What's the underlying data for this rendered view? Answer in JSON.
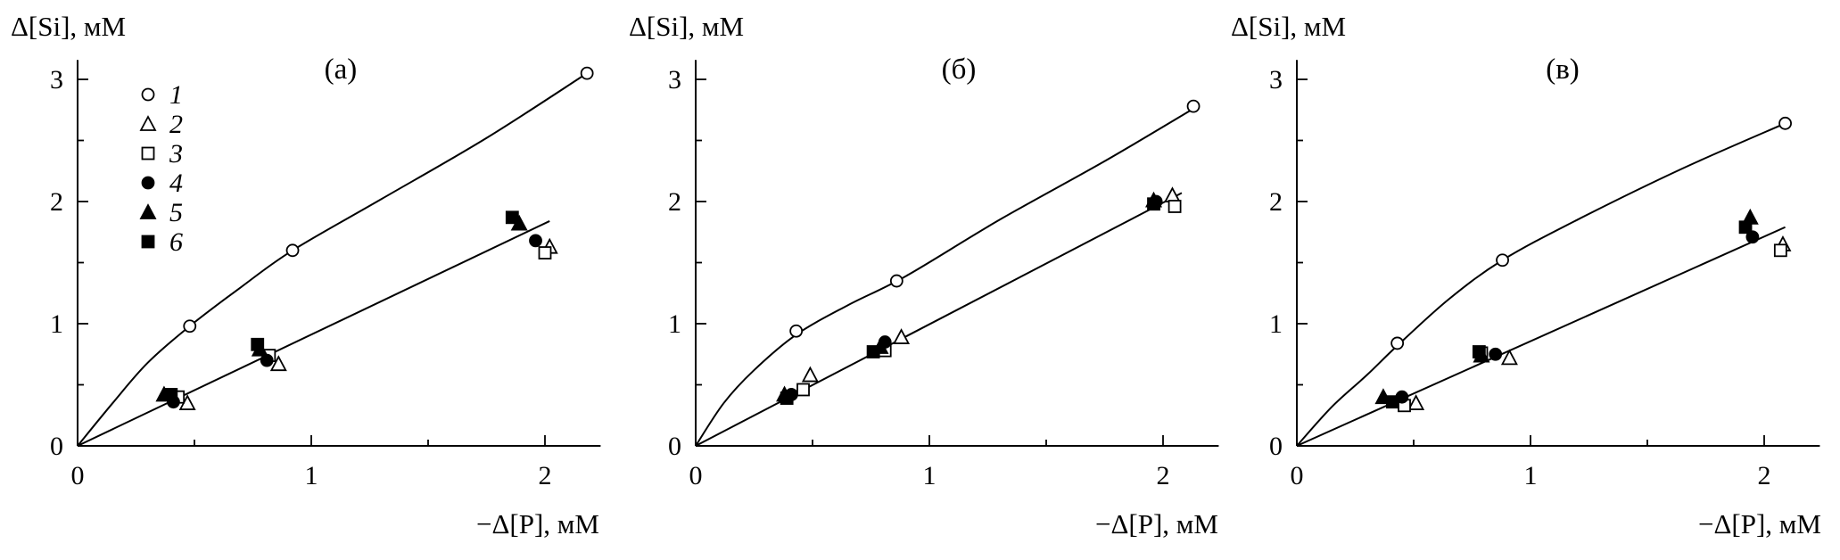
{
  "chart_data": [
    {
      "panel": "(а)",
      "type": "scatter",
      "title": "(а)",
      "xlabel": "−Δ[P], мМ",
      "ylabel": "Δ[Si], мМ",
      "xlim": [
        0,
        2.2
      ],
      "ylim": [
        0,
        3.1
      ],
      "xticks": [
        0,
        1,
        2
      ],
      "yticks": [
        0,
        1,
        2,
        3
      ],
      "legend": {
        "placement": "top-left",
        "entries": [
          "1",
          "2",
          "3",
          "4",
          "5",
          "6"
        ]
      },
      "series": [
        {
          "name": "1",
          "marker": "open-circle",
          "points": [
            [
              0.48,
              0.98
            ],
            [
              0.92,
              1.6
            ],
            [
              2.18,
              3.05
            ]
          ]
        },
        {
          "name": "2",
          "marker": "open-triangle",
          "points": [
            [
              0.47,
              0.35
            ],
            [
              0.86,
              0.67
            ],
            [
              2.02,
              1.63
            ]
          ]
        },
        {
          "name": "3",
          "marker": "open-square",
          "points": [
            [
              0.43,
              0.4
            ],
            [
              0.82,
              0.74
            ],
            [
              2.0,
              1.58
            ]
          ]
        },
        {
          "name": "4",
          "marker": "filled-circle",
          "points": [
            [
              0.41,
              0.36
            ],
            [
              0.81,
              0.7
            ],
            [
              1.96,
              1.68
            ]
          ]
        },
        {
          "name": "5",
          "marker": "filled-triangle",
          "points": [
            [
              0.37,
              0.42
            ],
            [
              0.78,
              0.79
            ],
            [
              1.89,
              1.82
            ]
          ]
        },
        {
          "name": "6",
          "marker": "filled-square",
          "points": [
            [
              0.4,
              0.42
            ],
            [
              0.77,
              0.83
            ],
            [
              1.86,
              1.87
            ]
          ]
        }
      ],
      "fit_lines": [
        {
          "style": "curve",
          "points": [
            [
              0,
              0
            ],
            [
              0.15,
              0.35
            ],
            [
              0.3,
              0.68
            ],
            [
              0.48,
              0.98
            ],
            [
              0.7,
              1.3
            ],
            [
              0.92,
              1.6
            ],
            [
              1.3,
              2.02
            ],
            [
              1.75,
              2.52
            ],
            [
              2.18,
              3.05
            ]
          ]
        },
        {
          "style": "line",
          "points": [
            [
              0,
              0
            ],
            [
              2.02,
              1.84
            ]
          ]
        }
      ]
    },
    {
      "panel": "(б)",
      "type": "scatter",
      "title": "(б)",
      "xlabel": "−Δ[P], мМ",
      "ylabel": "Δ[Si], мМ",
      "xlim": [
        0,
        2.2
      ],
      "ylim": [
        0,
        3.1
      ],
      "xticks": [
        0,
        1,
        2
      ],
      "yticks": [
        0,
        1,
        2,
        3
      ],
      "series": [
        {
          "name": "1",
          "marker": "open-circle",
          "points": [
            [
              0.43,
              0.94
            ],
            [
              0.86,
              1.35
            ],
            [
              2.13,
              2.78
            ]
          ]
        },
        {
          "name": "2",
          "marker": "open-triangle",
          "points": [
            [
              0.49,
              0.58
            ],
            [
              0.88,
              0.89
            ],
            [
              2.04,
              2.05
            ]
          ]
        },
        {
          "name": "3",
          "marker": "open-square",
          "points": [
            [
              0.46,
              0.46
            ],
            [
              0.81,
              0.78
            ],
            [
              2.05,
              1.96
            ]
          ]
        },
        {
          "name": "4",
          "marker": "filled-circle",
          "points": [
            [
              0.41,
              0.42
            ],
            [
              0.81,
              0.85
            ],
            [
              1.97,
              2.0
            ]
          ]
        },
        {
          "name": "5",
          "marker": "filled-triangle",
          "points": [
            [
              0.38,
              0.42
            ],
            [
              0.79,
              0.81
            ],
            [
              1.96,
              2.01
            ]
          ]
        },
        {
          "name": "6",
          "marker": "filled-square",
          "points": [
            [
              0.39,
              0.39
            ],
            [
              0.76,
              0.77
            ],
            [
              1.96,
              1.98
            ]
          ]
        }
      ],
      "fit_lines": [
        {
          "style": "curve",
          "points": [
            [
              0,
              0
            ],
            [
              0.12,
              0.35
            ],
            [
              0.25,
              0.62
            ],
            [
              0.43,
              0.91
            ],
            [
              0.65,
              1.15
            ],
            [
              0.9,
              1.39
            ],
            [
              1.3,
              1.85
            ],
            [
              1.75,
              2.33
            ],
            [
              2.13,
              2.76
            ]
          ]
        },
        {
          "style": "line",
          "points": [
            [
              0,
              0
            ],
            [
              2.08,
              2.07
            ]
          ]
        }
      ]
    },
    {
      "panel": "(в)",
      "type": "scatter",
      "title": "(в)",
      "xlabel": "−Δ[P], мМ",
      "ylabel": "Δ[Si], мМ",
      "xlim": [
        0,
        2.2
      ],
      "ylim": [
        0,
        3.1
      ],
      "xticks": [
        0,
        1,
        2
      ],
      "yticks": [
        0,
        1,
        2,
        3
      ],
      "series": [
        {
          "name": "1",
          "marker": "open-circle",
          "points": [
            [
              0.43,
              0.84
            ],
            [
              0.88,
              1.52
            ],
            [
              2.09,
              2.64
            ]
          ]
        },
        {
          "name": "2",
          "marker": "open-triangle",
          "points": [
            [
              0.51,
              0.35
            ],
            [
              0.91,
              0.72
            ],
            [
              2.08,
              1.65
            ]
          ]
        },
        {
          "name": "3",
          "marker": "open-square",
          "points": [
            [
              0.46,
              0.33
            ],
            [
              0.79,
              0.76
            ],
            [
              2.07,
              1.6
            ]
          ]
        },
        {
          "name": "4",
          "marker": "filled-circle",
          "points": [
            [
              0.45,
              0.4
            ],
            [
              0.85,
              0.75
            ],
            [
              1.95,
              1.71
            ]
          ]
        },
        {
          "name": "5",
          "marker": "filled-triangle",
          "points": [
            [
              0.37,
              0.4
            ],
            [
              0.79,
              0.74
            ],
            [
              1.94,
              1.87
            ]
          ]
        },
        {
          "name": "6",
          "marker": "filled-square",
          "points": [
            [
              0.41,
              0.36
            ],
            [
              0.78,
              0.77
            ],
            [
              1.92,
              1.79
            ]
          ]
        }
      ],
      "fit_lines": [
        {
          "style": "curve",
          "points": [
            [
              0,
              0
            ],
            [
              0.15,
              0.32
            ],
            [
              0.3,
              0.58
            ],
            [
              0.43,
              0.82
            ],
            [
              0.65,
              1.2
            ],
            [
              0.88,
              1.52
            ],
            [
              1.2,
              1.85
            ],
            [
              1.65,
              2.27
            ],
            [
              2.09,
              2.64
            ]
          ]
        },
        {
          "style": "line",
          "points": [
            [
              0,
              0
            ],
            [
              2.09,
              1.79
            ]
          ]
        }
      ]
    }
  ]
}
